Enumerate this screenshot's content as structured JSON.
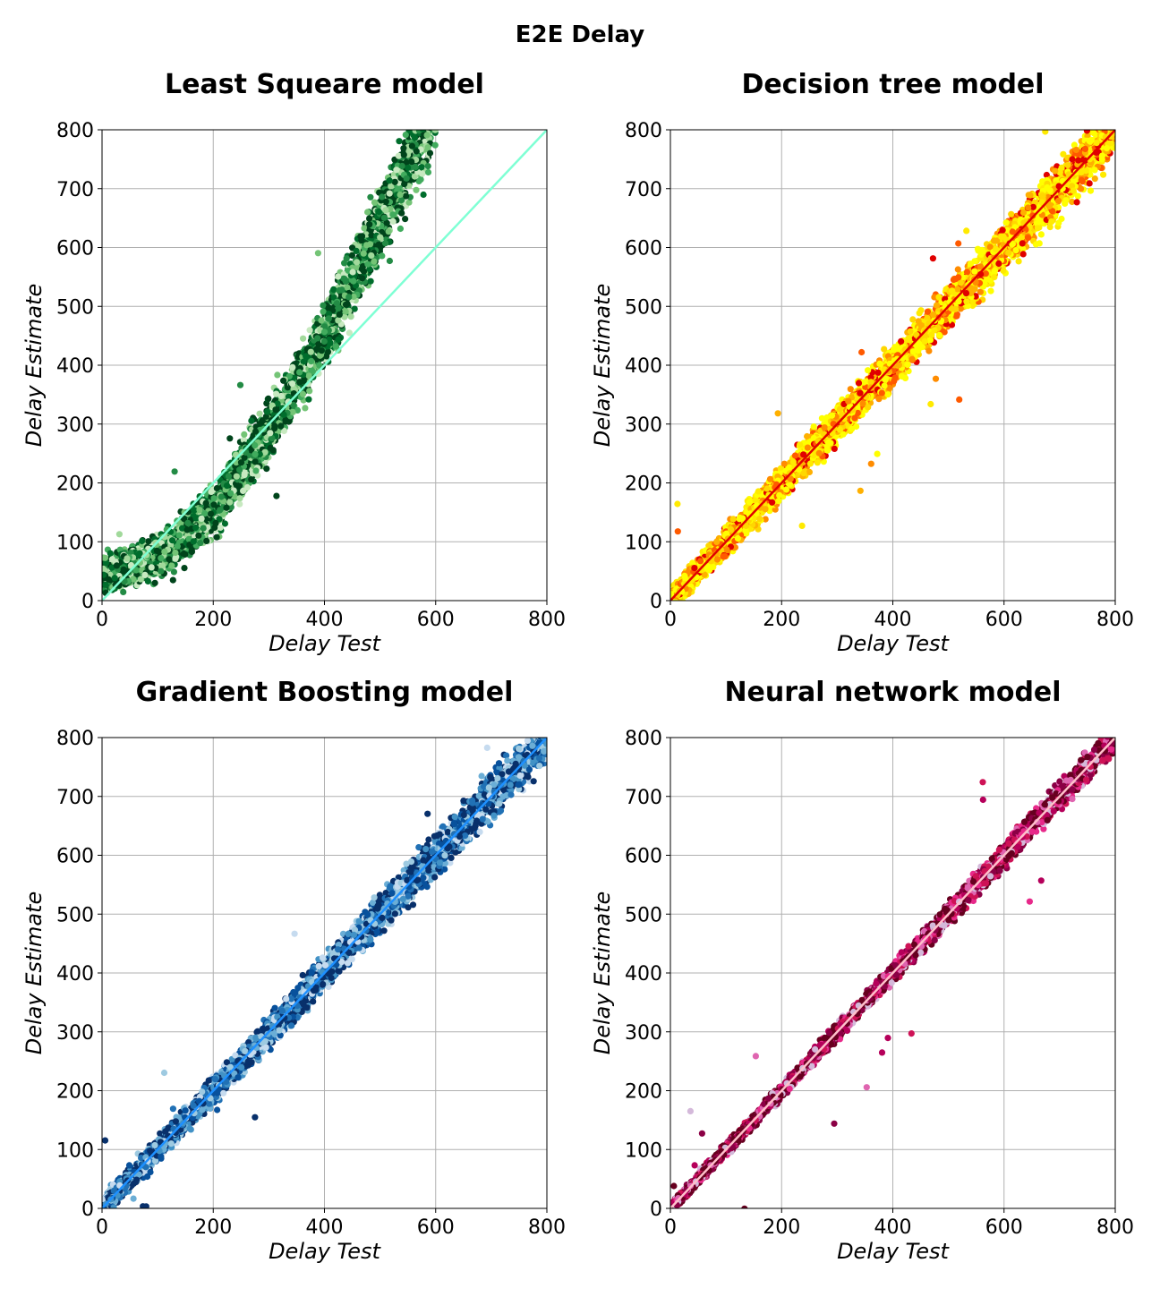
{
  "figure": {
    "title": "E2E Delay"
  },
  "chart_data": [
    {
      "type": "scatter",
      "title": "Least Squeare model",
      "xlabel": "Delay Test",
      "ylabel": "Delay Estimate",
      "xlim": [
        0,
        800
      ],
      "ylim": [
        0,
        800
      ],
      "xticks": [
        "0",
        "200",
        "400",
        "600",
        "800"
      ],
      "yticks": [
        "0",
        "100",
        "200",
        "300",
        "400",
        "500",
        "600",
        "700",
        "800"
      ],
      "grid": true,
      "colormap": [
        "#00441b",
        "#006d2c",
        "#238b45",
        "#41ab5d",
        "#74c476",
        "#a1d99b",
        "#c7e9c0"
      ],
      "reference_line": {
        "from": [
          0,
          0
        ],
        "to": [
          800,
          800
        ],
        "color": "#7fffd4"
      },
      "trend": [
        [
          0,
          40
        ],
        [
          100,
          75
        ],
        [
          200,
          150
        ],
        [
          300,
          290
        ],
        [
          400,
          450
        ],
        [
          500,
          640
        ],
        [
          560,
          760
        ]
      ],
      "spread": 45,
      "x_range": [
        0,
        600
      ]
    },
    {
      "type": "scatter",
      "title": "Decision tree model",
      "xlabel": "Delay Test",
      "ylabel": "Delay Estimate",
      "xlim": [
        0,
        800
      ],
      "ylim": [
        0,
        800
      ],
      "xticks": [
        "0",
        "200",
        "400",
        "600",
        "800"
      ],
      "yticks": [
        "0",
        "100",
        "200",
        "300",
        "400",
        "500",
        "600",
        "700",
        "800"
      ],
      "grid": true,
      "colormap": [
        "#ffff00",
        "#ffea00",
        "#ffd700",
        "#ffb000",
        "#ff8c00",
        "#ff5a00",
        "#e00000"
      ],
      "reference_line": {
        "from": [
          0,
          0
        ],
        "to": [
          800,
          800
        ],
        "color": "#e00000"
      },
      "trend": [
        [
          0,
          0
        ],
        [
          800,
          800
        ]
      ],
      "spread": 28,
      "x_range": [
        0,
        800
      ]
    },
    {
      "type": "scatter",
      "title": "Gradient Boosting model",
      "xlabel": "Delay Test",
      "ylabel": "Delay Estimate",
      "xlim": [
        0,
        800
      ],
      "ylim": [
        0,
        800
      ],
      "xticks": [
        "0",
        "200",
        "400",
        "600",
        "800"
      ],
      "yticks": [
        "0",
        "100",
        "200",
        "300",
        "400",
        "500",
        "600",
        "700",
        "800"
      ],
      "grid": true,
      "colormap": [
        "#08306b",
        "#08519c",
        "#2171b5",
        "#4292c6",
        "#6baed6",
        "#9ecae1",
        "#c6dbef"
      ],
      "reference_line": {
        "from": [
          0,
          0
        ],
        "to": [
          800,
          800
        ],
        "color": "#1e90ff"
      },
      "trend": [
        [
          0,
          0
        ],
        [
          800,
          800
        ]
      ],
      "spread": 24,
      "x_range": [
        0,
        800
      ]
    },
    {
      "type": "scatter",
      "title": "Neural network model",
      "xlabel": "Delay Test",
      "ylabel": "Delay Estimate",
      "xlim": [
        0,
        800
      ],
      "ylim": [
        0,
        800
      ],
      "xticks": [
        "0",
        "200",
        "400",
        "600",
        "800"
      ],
      "yticks": [
        "0",
        "100",
        "200",
        "300",
        "400",
        "500",
        "600",
        "700",
        "800"
      ],
      "grid": true,
      "colormap": [
        "#67001f",
        "#8b0045",
        "#b5005a",
        "#ce1256",
        "#e7298a",
        "#df65b0",
        "#d4b9da"
      ],
      "reference_line": {
        "from": [
          0,
          0
        ],
        "to": [
          800,
          800
        ],
        "color": "#ffc0cb"
      },
      "trend": [
        [
          0,
          0
        ],
        [
          800,
          800
        ]
      ],
      "spread": 13,
      "x_range": [
        0,
        800
      ]
    }
  ]
}
